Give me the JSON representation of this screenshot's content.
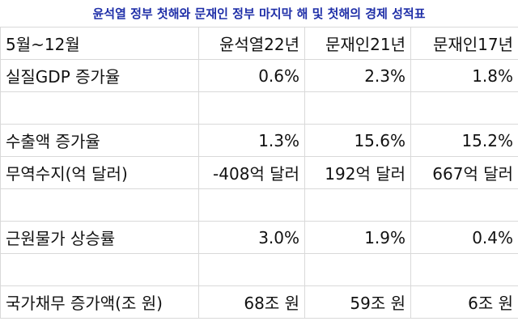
{
  "title": "윤석열 정부 첫해와 문재인 정부 마지막 해 및 첫해의 경제 성적표",
  "table": {
    "headers": [
      "5월~12월",
      "윤석열22년",
      "문재인21년",
      "문재인17년"
    ],
    "rows": [
      [
        "실질GDP 증가율",
        "0.6%",
        "2.3%",
        "1.8%"
      ],
      [
        "",
        "",
        "",
        ""
      ],
      [
        "수출액 증가율",
        "1.3%",
        "15.6%",
        "15.2%"
      ],
      [
        "무역수지(억 달러)",
        "-408억 달러",
        "192억 달러",
        "667억 달러"
      ],
      [
        "",
        "",
        "",
        ""
      ],
      [
        "근원물가 상승률",
        "3.0%",
        "1.9%",
        "0.4%"
      ],
      [
        "",
        "",
        "",
        ""
      ],
      [
        "국가채무 증가액(조 원)",
        "68조 원",
        "59조 원",
        "6조 원"
      ]
    ]
  },
  "colors": {
    "title": "#1f2fa8",
    "text": "#111111",
    "grid": "#d9d9d9"
  }
}
